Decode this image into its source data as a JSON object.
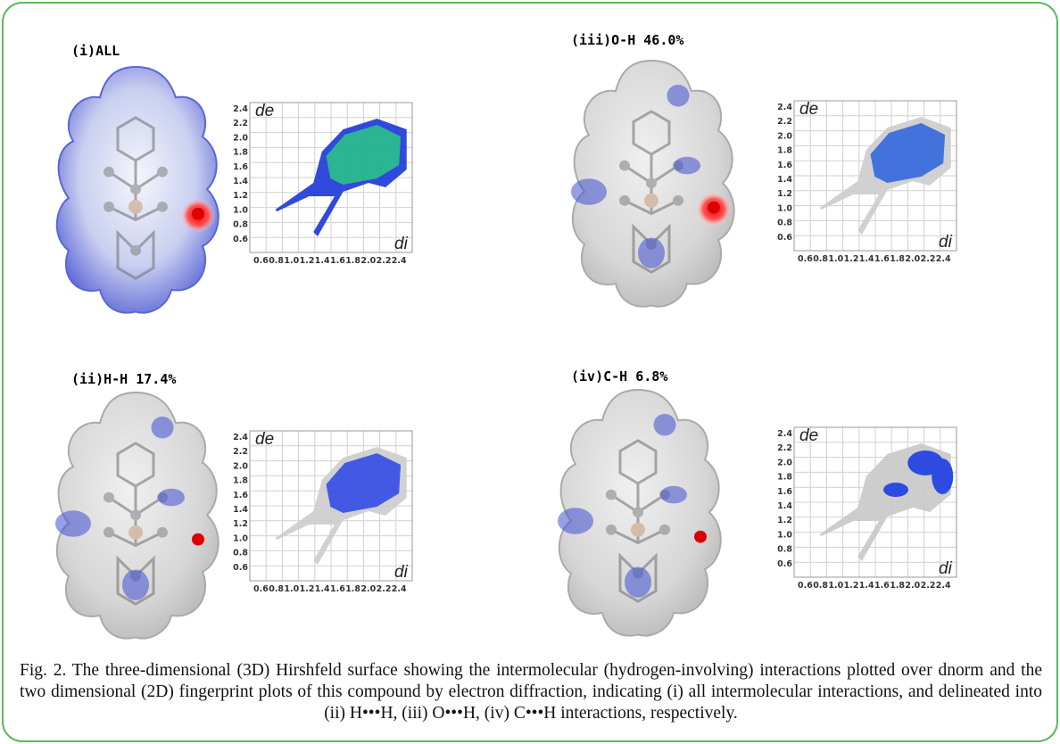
{
  "panels": [
    {
      "label": "(i)ALL",
      "plot": {
        "y_axis_label": "de",
        "x_axis_label": "di",
        "yticks": [
          "2.4",
          "2.2",
          "2.0",
          "1.8",
          "1.6",
          "1.4",
          "1.2",
          "1.0",
          "0.8",
          "0.6"
        ],
        "xticks": [
          "0.6",
          "0.8",
          "1.0",
          "1.2",
          "1.4",
          "1.6",
          "1.8",
          "2.0",
          "2.2",
          "2.4"
        ]
      }
    },
    {
      "label": "(iii)O-H 46.0%",
      "plot": {
        "y_axis_label": "de",
        "x_axis_label": "di",
        "yticks": [
          "2.4",
          "2.2",
          "2.0",
          "1.8",
          "1.6",
          "1.4",
          "1.2",
          "1.0",
          "0.8",
          "0.6"
        ],
        "xticks": [
          "0.6",
          "0.8",
          "1.0",
          "1.2",
          "1.4",
          "1.6",
          "1.8",
          "2.0",
          "2.2",
          "2.4"
        ]
      }
    },
    {
      "label": "(ii)H-H 17.4%",
      "plot": {
        "y_axis_label": "de",
        "x_axis_label": "di",
        "yticks": [
          "2.4",
          "2.2",
          "2.0",
          "1.8",
          "1.6",
          "1.4",
          "1.2",
          "1.0",
          "0.8",
          "0.6"
        ],
        "xticks": [
          "0.6",
          "0.8",
          "1.0",
          "1.2",
          "1.4",
          "1.6",
          "1.8",
          "2.0",
          "2.2",
          "2.4"
        ]
      }
    },
    {
      "label": "(iv)C-H 6.8%",
      "plot": {
        "y_axis_label": "de",
        "x_axis_label": "di",
        "yticks": [
          "2.4",
          "2.2",
          "2.0",
          "1.8",
          "1.6",
          "1.4",
          "1.2",
          "1.0",
          "0.8",
          "0.6"
        ],
        "xticks": [
          "0.6",
          "0.8",
          "1.0",
          "1.2",
          "1.4",
          "1.6",
          "1.8",
          "2.0",
          "2.2",
          "2.4"
        ]
      }
    }
  ],
  "caption": "Fig. 2. The three-dimensional (3D) Hirshfeld surface showing the intermolecular (hydrogen-involving) interactions plotted over dnorm and the two dimensional (2D) fingerprint plots of this compound by electron diffraction, indicating (i) all intermolecular interactions, and delineated into (ii) H•••H, (iii) O•••H, (iv) C•••H interactions, respectively."
}
